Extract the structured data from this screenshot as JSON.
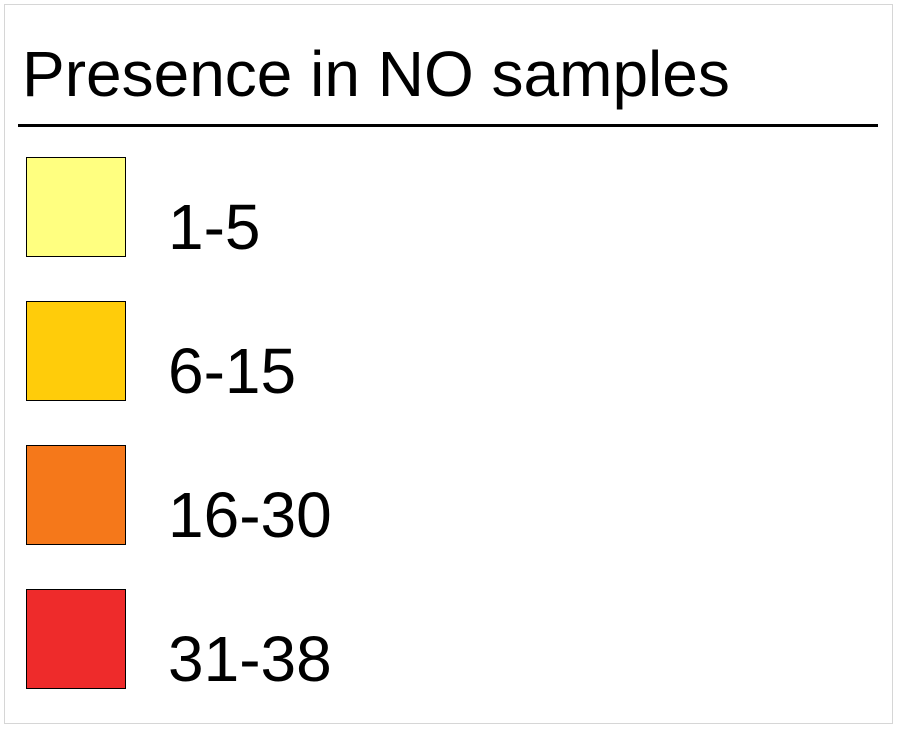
{
  "legend": {
    "title": "Presence in NO samples",
    "items": [
      {
        "label": "1-5",
        "color": "#ffff80"
      },
      {
        "label": "6-15",
        "color": "#ffcc0a"
      },
      {
        "label": "16-30",
        "color": "#f5781a"
      },
      {
        "label": "31-38",
        "color": "#ee2b2b"
      }
    ]
  }
}
